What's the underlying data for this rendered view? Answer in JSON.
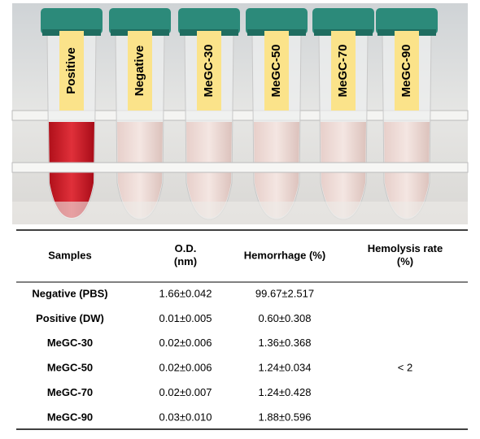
{
  "photo": {
    "tube_labels": [
      "Positive",
      "Negative",
      "MeGC-30",
      "MeGC-50",
      "MeGC-70",
      "MeGC-90"
    ]
  },
  "table": {
    "header": [
      "Samples",
      "O.D.\n(nm)",
      "Hemorrhage (%)",
      "Hemolysis rate\n(%)"
    ],
    "rows": [
      [
        "Negative (PBS)",
        "1.66±0.042",
        "99.67±2.517"
      ],
      [
        "Positive (DW)",
        "0.01±0.005",
        "0.60±0.308"
      ],
      [
        "MeGC-30",
        "0.02±0.006",
        "1.36±0.368"
      ],
      [
        "MeGC-50",
        "0.02±0.006",
        "1.24±0.034"
      ],
      [
        "MeGC-70",
        "0.02±0.007",
        "1.24±0.428"
      ],
      [
        "MeGC-90",
        "0.03±0.010",
        "1.88±0.596"
      ]
    ],
    "hemolysis_rate": "< 2"
  }
}
